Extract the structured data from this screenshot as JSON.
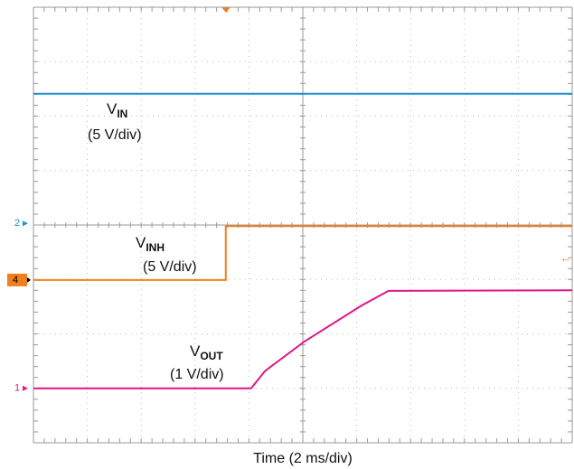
{
  "chart_data": {
    "type": "line",
    "xlabel": "Time (2 ms/div)",
    "xlim": [
      0,
      10
    ],
    "ylim": [
      0,
      8
    ],
    "xticks": [
      0,
      1,
      2,
      3,
      4,
      5,
      6,
      7,
      8,
      9,
      10
    ],
    "yticks": [
      0,
      1,
      2,
      3,
      4,
      5,
      6,
      7,
      8
    ],
    "grid": true,
    "series": [
      {
        "name": "V",
        "sub": "IN",
        "scale": "(5 V/div)",
        "color": "#1e90d8",
        "x": [
          0,
          10
        ],
        "y": [
          6.41,
          6.41
        ]
      },
      {
        "name": "V",
        "sub": "INH",
        "scale": "(5 V/div)",
        "color": "#f07f1e",
        "x": [
          0,
          3.57,
          3.57,
          10
        ],
        "y": [
          2.99,
          2.99,
          3.98,
          3.98
        ]
      },
      {
        "name": "V",
        "sub": "OUT",
        "scale": "(1 V/div)",
        "color": "#e0168a",
        "x": [
          0,
          4.04,
          4.3,
          5.03,
          6.09,
          6.59,
          10
        ],
        "y": [
          1.0,
          1.0,
          1.32,
          1.86,
          2.52,
          2.79,
          2.8
        ]
      }
    ],
    "channel_markers": [
      {
        "label": "2",
        "level": 4.03,
        "color": "#1e90d8",
        "boxed": false
      },
      {
        "label": "4",
        "level": 2.99,
        "color": "#f07f1e",
        "boxed": true
      },
      {
        "label": "1",
        "level": 1.0,
        "color": "#e0168a",
        "boxed": false
      }
    ]
  }
}
